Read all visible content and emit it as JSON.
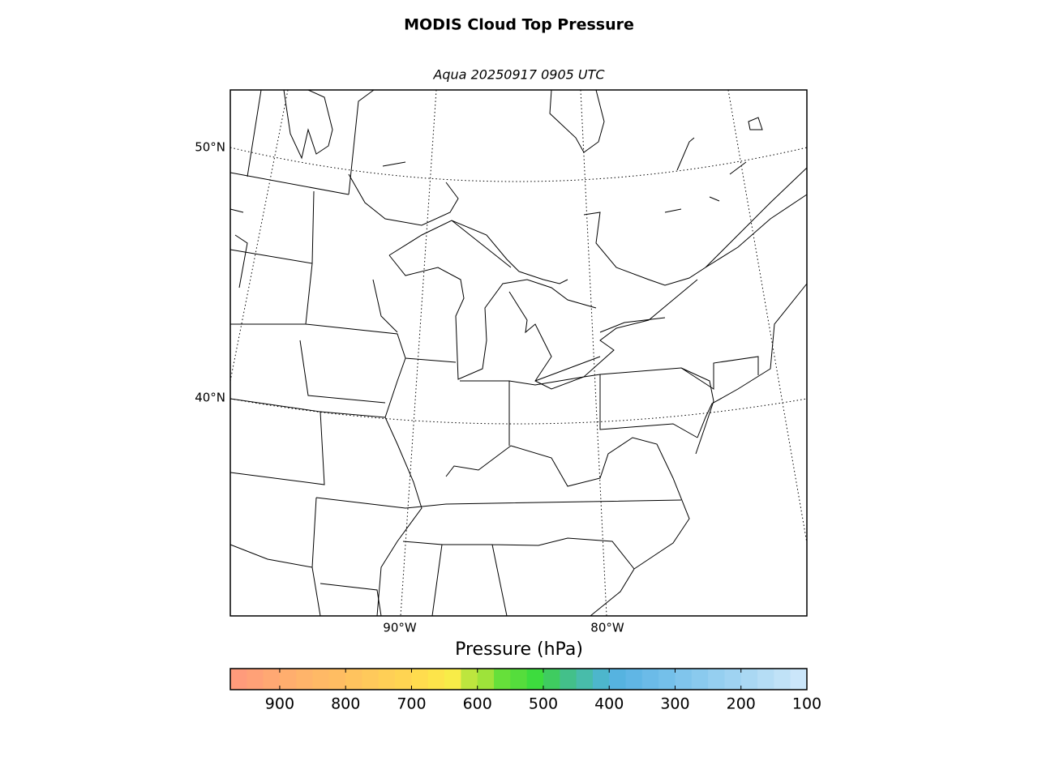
{
  "title": "MODIS Cloud Top Pressure",
  "subtitle": "Aqua 20250917 0905 UTC",
  "graticule": {
    "lat_labels": [
      "50°N",
      "40°N"
    ],
    "lon_labels": [
      "90°W",
      "80°W"
    ]
  },
  "colorbar": {
    "label": "Pressure (hPa)",
    "lim": [
      975,
      100
    ],
    "ticks": [
      900,
      800,
      700,
      600,
      500,
      400,
      300,
      200,
      100
    ],
    "bounds": [
      975,
      950,
      925,
      900,
      875,
      850,
      825,
      800,
      775,
      750,
      725,
      700,
      675,
      650,
      625,
      600,
      575,
      550,
      525,
      500,
      475,
      450,
      425,
      400,
      375,
      350,
      325,
      300,
      275,
      250,
      225,
      200,
      175,
      150,
      125,
      100
    ],
    "colors": [
      "#ff9b7b",
      "#ffa177",
      "#ffa873",
      "#ffae6e",
      "#ffb46a",
      "#ffb966",
      "#ffbd62",
      "#ffc35e",
      "#ffc95b",
      "#ffcf56",
      "#ffd452",
      "#ffdc4e",
      "#fde44a",
      "#f8ec48",
      "#bde63e",
      "#9ee33a",
      "#66e03a",
      "#55dd3c",
      "#3ddc3e",
      "#3fcc60",
      "#43c08a",
      "#48bcaa",
      "#4db6cc",
      "#56b3e0",
      "#60b6e5",
      "#6bbbe8",
      "#74c0ea",
      "#80c5ec",
      "#8acaee",
      "#95cff0",
      "#9fd3f2",
      "#aad8f3",
      "#b5ddf5",
      "#c0e2f7",
      "#cbe6fa"
    ]
  }
}
